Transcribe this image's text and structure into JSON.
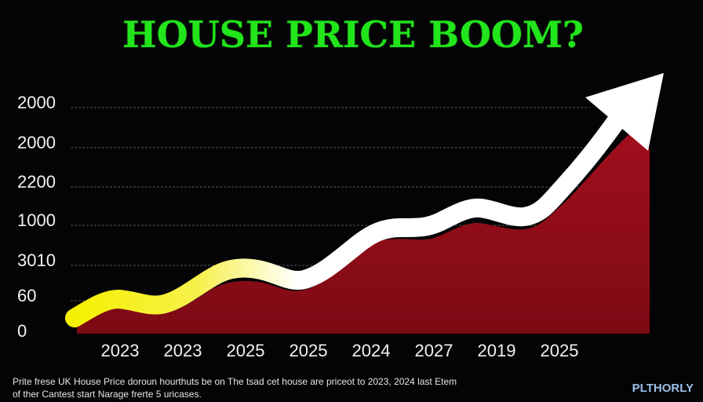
{
  "header": {
    "title": "HOUSE PRICE BOOM?"
  },
  "axis": {
    "y_labels": [
      "2000",
      "2000",
      "2200",
      "1000",
      "3010",
      "60",
      "0"
    ],
    "x_labels": [
      "2023",
      "2023",
      "2025",
      "2025",
      "2024",
      "2027",
      "2019",
      "2025"
    ]
  },
  "caption": {
    "lines": [
      "Prite frese UK House Price doroun hourthuts be on The tsad cet house are priceot to 2023, 2024 last Etem",
      "of ther Cantest start Narage frerte 5 uricases."
    ]
  },
  "brand": "PLTHORLY"
}
